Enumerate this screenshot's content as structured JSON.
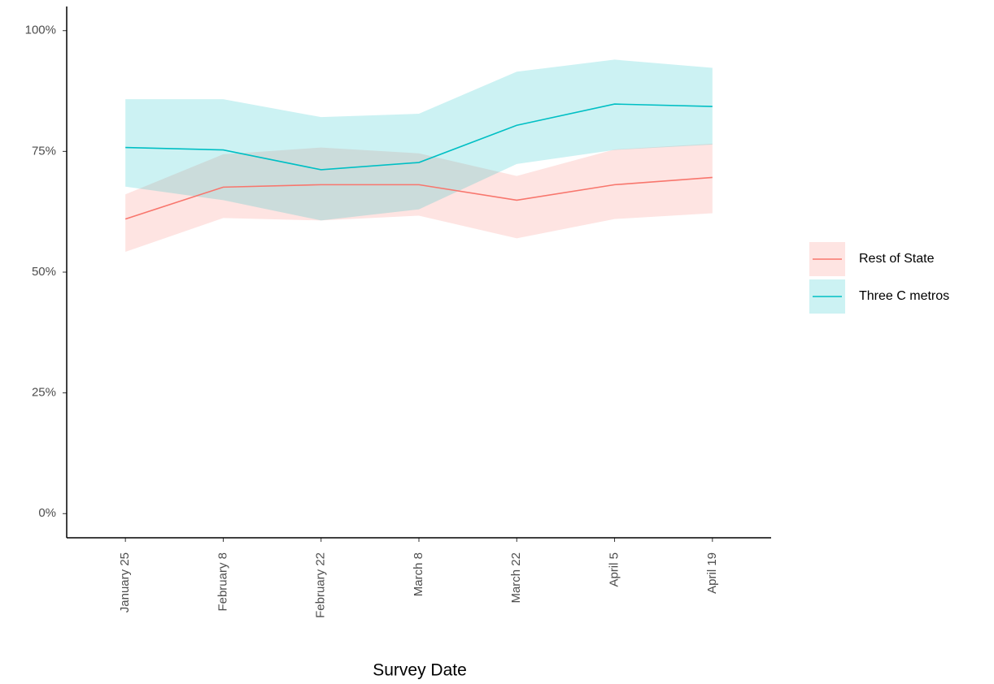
{
  "chart_data": {
    "type": "line",
    "x_label": "Survey Date",
    "categories": [
      "January 25",
      "February 8",
      "February 22",
      "March 8",
      "March 22",
      "April 5",
      "April 19"
    ],
    "series": [
      {
        "name": "Rest of State",
        "color": "#F8766D",
        "values": [
          61.0,
          67.6,
          68.1,
          68.1,
          64.9,
          68.1,
          69.6
        ],
        "lower": [
          54.2,
          61.2,
          60.7,
          61.7,
          57.0,
          61.0,
          62.2
        ],
        "upper": [
          66.1,
          74.4,
          75.8,
          74.6,
          69.9,
          75.4,
          76.6
        ]
      },
      {
        "name": "Three C metros",
        "color": "#00BFC4",
        "values": [
          75.8,
          75.3,
          71.2,
          72.7,
          80.4,
          84.8,
          84.3
        ],
        "lower": [
          67.7,
          64.9,
          60.7,
          63.0,
          72.4,
          75.3,
          76.4
        ],
        "upper": [
          85.8,
          85.8,
          82.1,
          82.8,
          91.5,
          94.0,
          92.3
        ]
      }
    ],
    "ylim": [
      -5,
      105
    ],
    "yticks": [
      {
        "value": 0,
        "label": "0%"
      },
      {
        "value": 25,
        "label": "25%"
      },
      {
        "value": 50,
        "label": "50%"
      },
      {
        "value": 75,
        "label": "75%"
      },
      {
        "value": 100,
        "label": "100%"
      }
    ],
    "grid": false,
    "legend": "right"
  }
}
